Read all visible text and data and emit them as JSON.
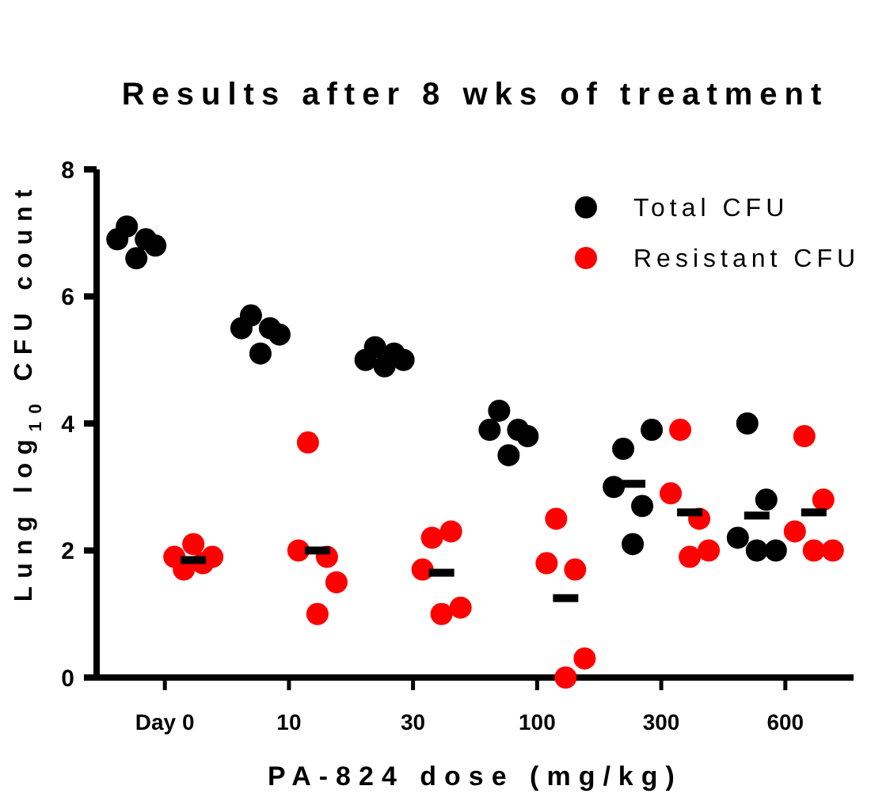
{
  "chart_data": {
    "type": "scatter",
    "title": "Results after 8 wks of treatment",
    "xlabel": "PA-824 dose (mg/kg)",
    "ylabel": "Lung log$_{10}$ CFU count",
    "categories": [
      "Day 0",
      "10",
      "30",
      "100",
      "300",
      "600"
    ],
    "ylim": [
      0,
      8
    ],
    "yticks": [
      0,
      2,
      4,
      6,
      8
    ],
    "legend": "top right",
    "marker": "circle",
    "series": [
      {
        "name": "Total CFU",
        "color": "#000000",
        "x": [
          "Day 0",
          "Day 0",
          "Day 0",
          "Day 0",
          "Day 0",
          "10",
          "10",
          "10",
          "10",
          "10",
          "30",
          "30",
          "30",
          "30",
          "30",
          "100",
          "100",
          "100",
          "100",
          "100",
          "300",
          "300",
          "300",
          "300",
          "300",
          "600",
          "600",
          "600",
          "600",
          "600"
        ],
        "values": [
          6.9,
          7.1,
          6.6,
          6.9,
          6.8,
          5.5,
          5.7,
          5.1,
          5.5,
          5.4,
          5.0,
          5.2,
          4.9,
          5.1,
          5.0,
          3.9,
          4.2,
          3.5,
          3.9,
          3.8,
          3.0,
          3.6,
          2.1,
          2.7,
          3.9,
          2.2,
          4.0,
          2.0,
          2.8,
          2.0
        ]
      },
      {
        "name": "Resistant CFU",
        "color": "#ff0000",
        "x": [
          "Day 0",
          "Day 0",
          "Day 0",
          "Day 0",
          "Day 0",
          "10",
          "10",
          "10",
          "10",
          "10",
          "30",
          "30",
          "30",
          "30",
          "30",
          "100",
          "100",
          "100",
          "100",
          "100",
          "300",
          "300",
          "300",
          "300",
          "300",
          "600",
          "600",
          "600",
          "600",
          "600"
        ],
        "values": [
          1.9,
          1.7,
          2.1,
          1.8,
          1.9,
          2.0,
          3.7,
          1.0,
          1.9,
          1.5,
          1.7,
          2.2,
          1.0,
          2.3,
          1.1,
          1.8,
          2.5,
          0.0,
          1.7,
          0.3,
          2.9,
          3.9,
          1.9,
          2.5,
          2.0,
          2.3,
          3.8,
          2.0,
          2.8,
          2.0
        ]
      },
      {
        "type": "scatter",
        "marker": "square",
        "color": "#000000",
        "x": [
          "300",
          "600"
        ],
        "values": [
          3.05,
          2.55
        ]
      },
      {
        "type": "scatter",
        "marker": "square",
        "color": "#000000",
        "x": [
          "Day 0",
          "10",
          "30",
          "100",
          "300",
          "600"
        ],
        "values": [
          1.85,
          2.0,
          1.65,
          1.25,
          2.6,
          2.6
        ]
      }
    ]
  }
}
